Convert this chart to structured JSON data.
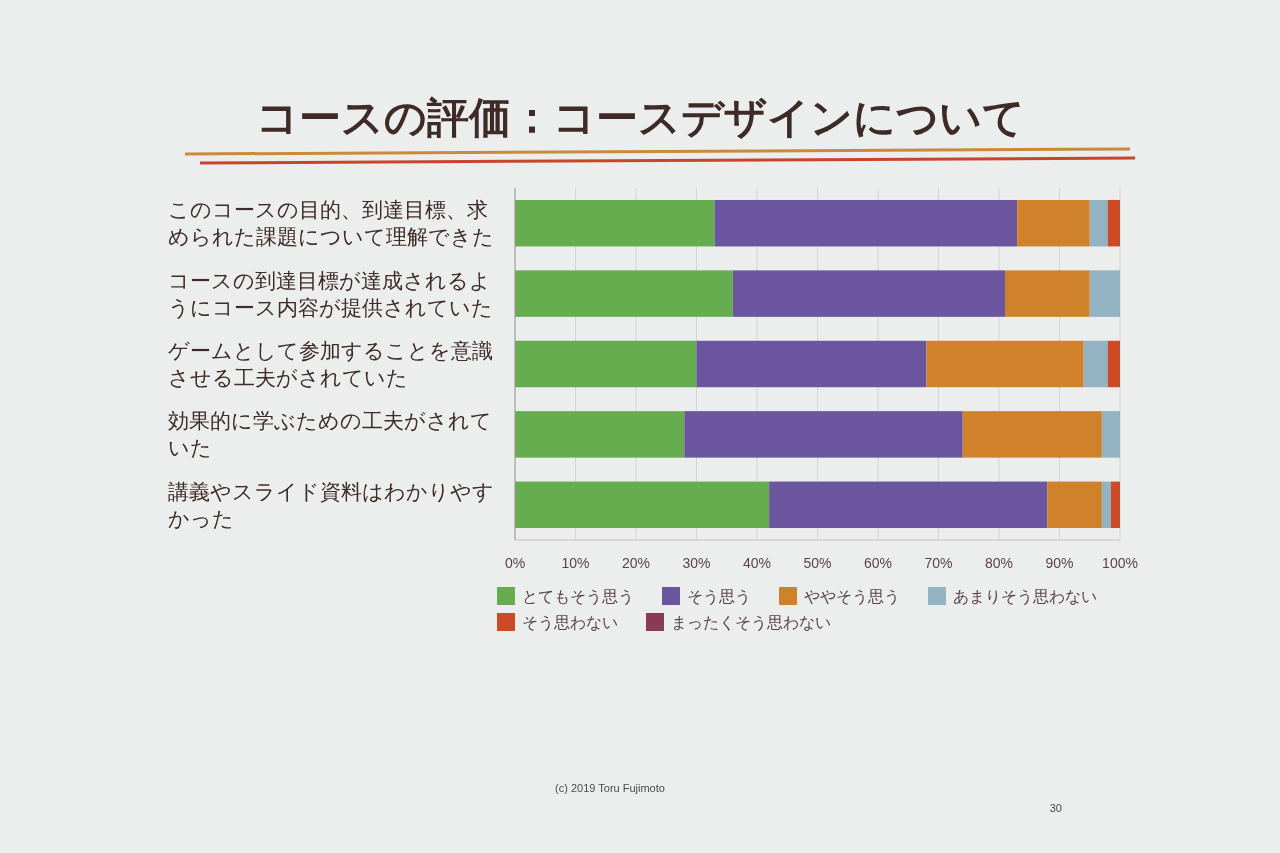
{
  "chart_data": {
    "type": "bar",
    "orientation": "horizontal",
    "stacked": true,
    "title": "コースの評価：コースデザインについて",
    "categories": [
      "このコースの目的、到達目標、求められた課題について理解できた",
      "コースの到達目標が達成されるようにコース内容が提供されていた",
      "ゲームとして参加することを意識させる工夫がされていた",
      "効果的に学ぶための工夫がされていた",
      "講義やスライド資料はわかりやすかった"
    ],
    "series": [
      {
        "name": "とてもそう思う",
        "color": "#66ad4f",
        "values": [
          33,
          36,
          30,
          28,
          42
        ]
      },
      {
        "name": "そう思う",
        "color": "#6a559e",
        "values": [
          50,
          45,
          38,
          46,
          46
        ]
      },
      {
        "name": "ややそう思う",
        "color": "#d0822a",
        "values": [
          12,
          14,
          26,
          23,
          9
        ]
      },
      {
        "name": "あまりそう思わない",
        "color": "#93b2c2",
        "values": [
          3,
          5,
          4,
          3,
          1.5
        ]
      },
      {
        "name": "そう思わない",
        "color": "#cc4a25",
        "values": [
          2,
          0,
          2,
          0,
          1.5
        ]
      },
      {
        "name": "まったくそう思わない",
        "color": "#8a3a56",
        "values": [
          0,
          0,
          0,
          0,
          0
        ]
      }
    ],
    "xlim": [
      0,
      100
    ],
    "xticks": [
      {
        "value": 0,
        "label": "0%"
      },
      {
        "value": 10,
        "label": "10%"
      },
      {
        "value": 20,
        "label": "20%"
      },
      {
        "value": 30,
        "label": "30%"
      },
      {
        "value": 40,
        "label": "40%"
      },
      {
        "value": 50,
        "label": "50%"
      },
      {
        "value": 60,
        "label": "60%"
      },
      {
        "value": 70,
        "label": "70%"
      },
      {
        "value": 80,
        "label": "80%"
      },
      {
        "value": 90,
        "label": "90%"
      },
      {
        "value": 100,
        "label": "100%"
      }
    ],
    "grid": "x",
    "legend": "bottom",
    "annotations": [
      "(c) 2019 Toru Fujimoto",
      "30"
    ]
  }
}
